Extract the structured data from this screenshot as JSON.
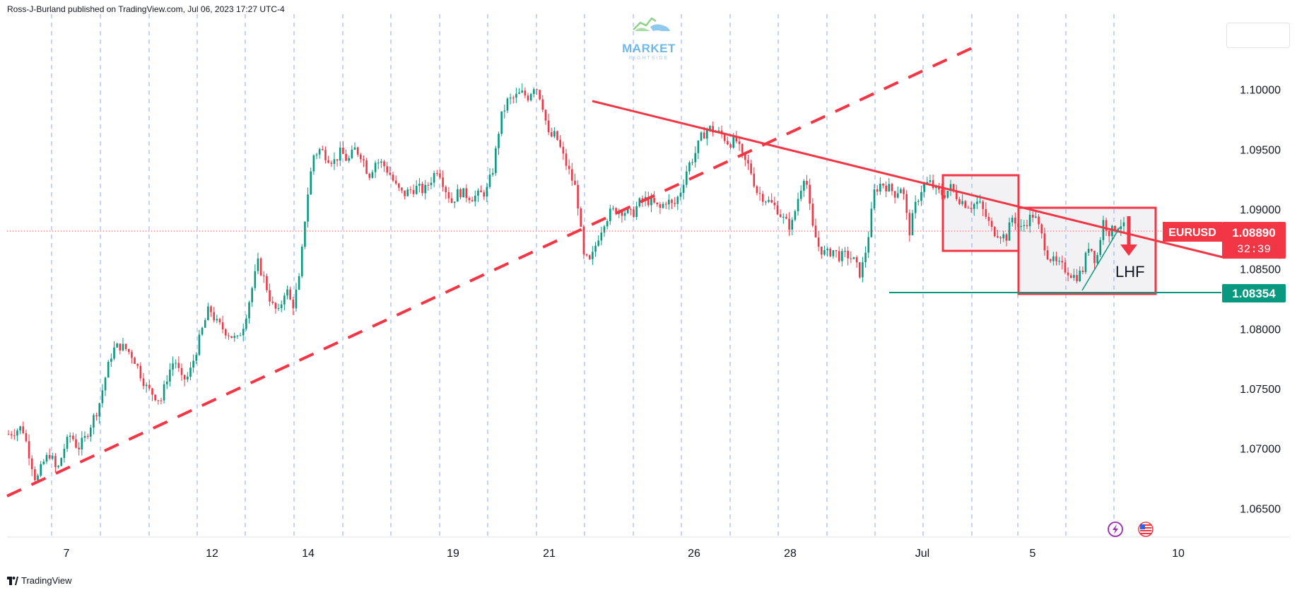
{
  "header": {
    "publisher": "Ross-J-Burland published on TradingView.com, Jul 06, 2023 17:27 UTC-4"
  },
  "footer": {
    "brand": "TradingView"
  },
  "watermark": {
    "text": "MARKET",
    "subtext": "RIGHTSIDE"
  },
  "symbol_label": {
    "symbol": "EURUSD",
    "price": "1.08890",
    "countdown": "32:39",
    "color": "#f23645"
  },
  "support_label": {
    "price": "1.08354",
    "color": "#089981"
  },
  "icons": [
    "lightning-icon",
    "us-flag-icon"
  ],
  "chart_data": {
    "type": "candlestick",
    "instrument": "EURUSD",
    "x_ticks": [
      "7",
      "12",
      "14",
      "19",
      "21",
      "26",
      "28",
      "Jul",
      "5",
      "10"
    ],
    "y_ticks": [
      "1.10000",
      "1.09500",
      "1.09000",
      "1.08500",
      "1.08000",
      "1.07500",
      "1.07000",
      "1.06500"
    ],
    "ylim": [
      1.0626,
      1.1063
    ],
    "last_price": 1.0889,
    "support_level": 1.08354,
    "price_path": [
      [
        0,
        1.0712
      ],
      [
        2,
        1.0718
      ],
      [
        3,
        1.0695
      ],
      [
        4,
        1.0672
      ],
      [
        5,
        1.0688
      ],
      [
        6,
        1.0696
      ],
      [
        7,
        1.068
      ],
      [
        8,
        1.07
      ],
      [
        9,
        1.0712
      ],
      [
        10,
        1.07
      ],
      [
        11,
        1.0708
      ],
      [
        12,
        1.0722
      ],
      [
        13,
        1.0735
      ],
      [
        14,
        1.076
      ],
      [
        15,
        1.0782
      ],
      [
        16,
        1.0786
      ],
      [
        17,
        1.0783
      ],
      [
        18,
        1.0777
      ],
      [
        19,
        1.0763
      ],
      [
        20,
        1.075
      ],
      [
        21,
        1.0745
      ],
      [
        22,
        1.074
      ],
      [
        23,
        1.0762
      ],
      [
        24,
        1.0775
      ],
      [
        25,
        1.0757
      ],
      [
        26,
        1.076
      ],
      [
        27,
        1.078
      ],
      [
        28,
        1.08
      ],
      [
        29,
        1.0818
      ],
      [
        30,
        1.0805
      ],
      [
        31,
        1.08
      ],
      [
        32,
        1.0795
      ],
      [
        33,
        1.079
      ],
      [
        34,
        1.0805
      ],
      [
        35,
        1.083
      ],
      [
        36,
        1.0855
      ],
      [
        37,
        1.084
      ],
      [
        38,
        1.082
      ],
      [
        39,
        1.0813
      ],
      [
        40,
        1.0835
      ],
      [
        41,
        1.0818
      ],
      [
        42,
        1.0842
      ],
      [
        43,
        1.0905
      ],
      [
        44,
        1.0945
      ],
      [
        45,
        1.095
      ],
      [
        46,
        1.0944
      ],
      [
        47,
        1.094
      ],
      [
        48,
        1.0948
      ],
      [
        49,
        1.094
      ],
      [
        50,
        1.095
      ],
      [
        51,
        1.0945
      ],
      [
        52,
        1.0928
      ],
      [
        53,
        1.094
      ],
      [
        54,
        1.0938
      ],
      [
        55,
        1.093
      ],
      [
        56,
        1.0918
      ],
      [
        57,
        1.0912
      ],
      [
        58,
        1.0916
      ],
      [
        59,
        1.0918
      ],
      [
        60,
        1.0915
      ],
      [
        61,
        1.0925
      ],
      [
        62,
        1.0935
      ],
      [
        63,
        1.0918
      ],
      [
        64,
        1.0906
      ],
      [
        65,
        1.0915
      ],
      [
        66,
        1.0912
      ],
      [
        67,
        1.091
      ],
      [
        68,
        1.0912
      ],
      [
        69,
        1.0915
      ],
      [
        70,
        1.0935
      ],
      [
        71,
        1.0975
      ],
      [
        72,
        1.099
      ],
      [
        73,
        1.0993
      ],
      [
        74,
        1.0997
      ],
      [
        75,
        1.0994
      ],
      [
        76,
        1.1005
      ],
      [
        77,
        1.099
      ],
      [
        78,
        1.096
      ],
      [
        79,
        1.0962
      ],
      [
        80,
        1.0945
      ],
      [
        81,
        1.093
      ],
      [
        82,
        1.0915
      ],
      [
        83,
        1.086
      ],
      [
        84,
        1.0855
      ],
      [
        85,
        1.0875
      ],
      [
        86,
        1.089
      ],
      [
        87,
        1.0898
      ],
      [
        88,
        1.09
      ],
      [
        89,
        1.0898
      ],
      [
        90,
        1.0895
      ],
      [
        91,
        1.0905
      ],
      [
        92,
        1.0908
      ],
      [
        93,
        1.0905
      ],
      [
        94,
        1.09
      ],
      [
        95,
        1.0908
      ],
      [
        96,
        1.0902
      ],
      [
        97,
        1.0915
      ],
      [
        98,
        1.0935
      ],
      [
        99,
        1.0945
      ],
      [
        100,
        1.096
      ],
      [
        101,
        1.0968
      ],
      [
        102,
        1.0965
      ],
      [
        103,
        1.0962
      ],
      [
        104,
        1.0955
      ],
      [
        105,
        1.0958
      ],
      [
        106,
        1.0942
      ],
      [
        107,
        1.0935
      ],
      [
        108,
        1.0915
      ],
      [
        109,
        1.091
      ],
      [
        110,
        1.0905
      ],
      [
        111,
        1.09
      ],
      [
        112,
        1.089
      ],
      [
        113,
        1.0885
      ],
      [
        114,
        1.091
      ],
      [
        115,
        1.0932
      ],
      [
        116,
        1.0885
      ],
      [
        117,
        1.0868
      ],
      [
        118,
        1.0862
      ],
      [
        119,
        1.0866
      ],
      [
        120,
        1.086
      ],
      [
        121,
        1.0862
      ],
      [
        122,
        1.0857
      ],
      [
        123,
        1.0845
      ],
      [
        124,
        1.0873
      ],
      [
        125,
        1.0915
      ],
      [
        126,
        1.0922
      ],
      [
        127,
        1.0918
      ],
      [
        128,
        1.0913
      ],
      [
        129,
        1.092
      ],
      [
        130,
        1.088
      ],
      [
        131,
        1.0905
      ],
      [
        132,
        1.092
      ],
      [
        133,
        1.0922
      ],
      [
        134,
        1.0915
      ],
      [
        135,
        1.0912
      ],
      [
        136,
        1.0918
      ],
      [
        137,
        1.091
      ],
      [
        138,
        1.0905
      ],
      [
        139,
        1.0903
      ],
      [
        140,
        1.0906
      ],
      [
        141,
        1.0895
      ],
      [
        142,
        1.0882
      ],
      [
        143,
        1.088
      ],
      [
        144,
        1.0876
      ],
      [
        145,
        1.0895
      ],
      [
        146,
        1.0882
      ],
      [
        147,
        1.089
      ],
      [
        148,
        1.0896
      ],
      [
        149,
        1.088
      ],
      [
        150,
        1.0862
      ],
      [
        151,
        1.0855
      ],
      [
        152,
        1.0852
      ],
      [
        153,
        1.0848
      ],
      [
        154,
        1.0843
      ],
      [
        155,
        1.0848
      ],
      [
        156,
        1.0872
      ],
      [
        157,
        1.0855
      ],
      [
        158,
        1.089
      ],
      [
        159,
        1.088
      ],
      [
        160,
        1.0886
      ],
      [
        161,
        1.0889
      ]
    ]
  }
}
